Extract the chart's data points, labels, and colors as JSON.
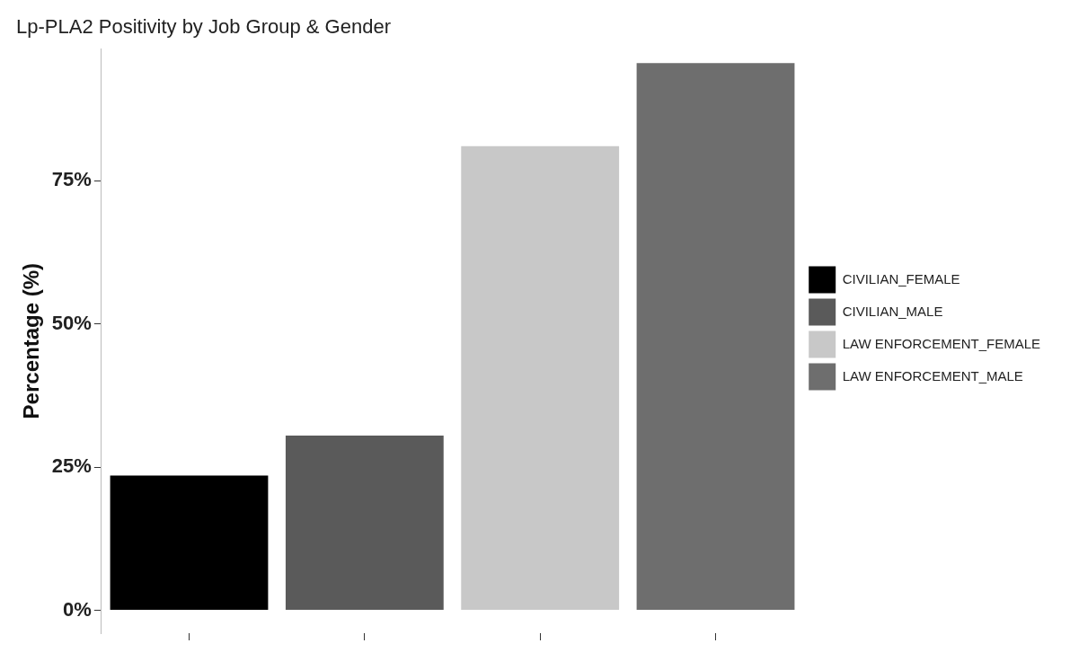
{
  "chart_data": {
    "type": "bar",
    "title": "Lp-PLA2 Positivity by Job Group & Gender",
    "ylabel": "Percentage (%)",
    "categories": [
      null,
      null,
      null,
      null
    ],
    "series": [
      {
        "name": "CIVILIAN_FEMALE",
        "color": "#000000",
        "values": [
          23.5,
          null,
          null,
          null
        ]
      },
      {
        "name": "CIVILIAN_MALE",
        "color": "#5a5a5a",
        "values": [
          null,
          30.5,
          null,
          null
        ]
      },
      {
        "name": "LAW ENFORCEMENT_FEMALE",
        "color": "#c8c8c8",
        "values": [
          null,
          null,
          81,
          null
        ]
      },
      {
        "name": "LAW ENFORCEMENT_MALE",
        "color": "#6e6e6e",
        "values": [
          null,
          null,
          null,
          95.5
        ]
      }
    ],
    "yticks": [
      {
        "value": 0,
        "label": "0%"
      },
      {
        "value": 25,
        "label": "25%"
      },
      {
        "value": 50,
        "label": "50%"
      },
      {
        "value": 75,
        "label": "75%"
      }
    ],
    "ylim": [
      -4,
      98
    ],
    "stacked": true,
    "tick_labels": "y",
    "grid": false,
    "legend": "right"
  }
}
